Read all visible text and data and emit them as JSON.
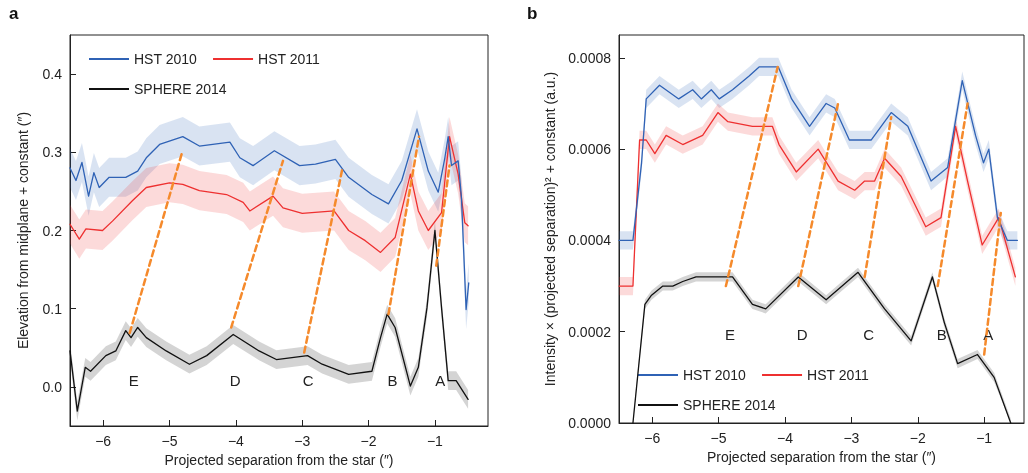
{
  "chart_data": [
    {
      "type": "line",
      "title": "a",
      "xlabel": "Projected separation from the star (″)",
      "ylabel": "Elevation from midplane + constant (″)",
      "xlim": [
        -6.5,
        -0.2
      ],
      "ylim": [
        -0.05,
        0.45
      ],
      "xticks": [
        {
          "value": -6,
          "label": "−6"
        },
        {
          "value": -5,
          "label": "−5"
        },
        {
          "value": -4,
          "label": "−4"
        },
        {
          "value": -3,
          "label": "−3"
        },
        {
          "value": -2,
          "label": "−2"
        },
        {
          "value": -1,
          "label": "−1"
        }
      ],
      "yticks": [
        {
          "value": 0,
          "label": "0.0"
        },
        0.1,
        0.2,
        0.3,
        0.4
      ],
      "grid": false,
      "legend": "top left",
      "marker": "none",
      "line_style": "solid",
      "series": [
        {
          "name": "HST 2010",
          "color": "#2f62b5",
          "x": [
            -6.5,
            -6.41,
            -6.32,
            -6.22,
            -6.14,
            -6.06,
            -5.91,
            -5.66,
            -5.48,
            -5.35,
            -5.15,
            -4.8,
            -4.55,
            -4.09,
            -3.94,
            -3.74,
            -3.42,
            -3.04,
            -2.8,
            -2.5,
            -2.3,
            -1.95,
            -1.7,
            -1.5,
            -1.27,
            -1.1,
            -0.95,
            -0.85,
            -0.8,
            -0.75,
            -0.65,
            -0.6,
            -0.53,
            -0.49
          ],
          "values": [
            0.28,
            0.264,
            0.287,
            0.244,
            0.274,
            0.255,
            0.268,
            0.268,
            0.276,
            0.293,
            0.31,
            0.32,
            0.308,
            0.313,
            0.293,
            0.283,
            0.302,
            0.283,
            0.285,
            0.291,
            0.268,
            0.246,
            0.234,
            0.264,
            0.33,
            0.276,
            0.249,
            0.293,
            0.32,
            0.283,
            0.289,
            0.242,
            0.099,
            0.133
          ],
          "lower": [
            0.255,
            0.239,
            0.262,
            0.219,
            0.249,
            0.23,
            0.243,
            0.243,
            0.251,
            0.268,
            0.285,
            0.295,
            0.283,
            0.288,
            0.268,
            0.258,
            0.277,
            0.258,
            0.26,
            0.266,
            0.243,
            0.221,
            0.209,
            0.239,
            0.305,
            0.251,
            0.224,
            0.268,
            0.295,
            0.258,
            0.264,
            0.217,
            0.074,
            0.108
          ],
          "upper": [
            0.305,
            0.289,
            0.312,
            0.269,
            0.299,
            0.28,
            0.293,
            0.293,
            0.301,
            0.318,
            0.335,
            0.345,
            0.333,
            0.338,
            0.318,
            0.308,
            0.327,
            0.308,
            0.31,
            0.316,
            0.293,
            0.271,
            0.259,
            0.289,
            0.355,
            0.301,
            0.274,
            0.318,
            0.345,
            0.308,
            0.314,
            0.267,
            0.124,
            0.158
          ]
        },
        {
          "name": "HST 2011",
          "color": "#ee3030",
          "x": [
            -6.5,
            -6.36,
            -6.26,
            -6.01,
            -5.86,
            -5.56,
            -5.35,
            -5.0,
            -4.8,
            -4.55,
            -4.14,
            -3.89,
            -3.79,
            -3.44,
            -3.29,
            -3.0,
            -2.52,
            -2.3,
            -2.05,
            -1.82,
            -1.6,
            -1.37,
            -1.25,
            -1.1,
            -0.9,
            -0.78,
            -0.65,
            -0.55,
            -0.5
          ],
          "values": [
            0.208,
            0.189,
            0.202,
            0.2,
            0.212,
            0.238,
            0.255,
            0.261,
            0.259,
            0.251,
            0.246,
            0.236,
            0.225,
            0.244,
            0.229,
            0.222,
            0.225,
            0.2,
            0.187,
            0.172,
            0.191,
            0.272,
            0.225,
            0.2,
            0.223,
            0.32,
            0.272,
            0.21,
            0.206
          ],
          "lower": [
            0.183,
            0.164,
            0.177,
            0.175,
            0.187,
            0.213,
            0.23,
            0.236,
            0.234,
            0.226,
            0.221,
            0.211,
            0.2,
            0.219,
            0.204,
            0.197,
            0.2,
            0.175,
            0.162,
            0.147,
            0.166,
            0.247,
            0.2,
            0.175,
            0.198,
            0.295,
            0.247,
            0.185,
            0.181
          ],
          "upper": [
            0.233,
            0.214,
            0.227,
            0.225,
            0.237,
            0.263,
            0.28,
            0.286,
            0.284,
            0.276,
            0.271,
            0.261,
            0.25,
            0.269,
            0.254,
            0.247,
            0.25,
            0.225,
            0.212,
            0.197,
            0.216,
            0.297,
            0.25,
            0.225,
            0.248,
            0.345,
            0.297,
            0.235,
            0.231
          ]
        },
        {
          "name": "SPHERE 2014",
          "color": "#111111",
          "x": [
            -6.5,
            -6.39,
            -6.27,
            -6.19,
            -5.96,
            -5.81,
            -5.66,
            -5.58,
            -5.48,
            -5.35,
            -5.05,
            -4.7,
            -4.44,
            -4.04,
            -3.65,
            -3.39,
            -2.92,
            -2.7,
            -2.3,
            -1.95,
            -1.82,
            -1.72,
            -1.6,
            -1.37,
            -1.25,
            -1.12,
            -1.0,
            -0.9,
            -0.8,
            -0.68,
            -0.5
          ],
          "values": [
            0.046,
            -0.031,
            0.025,
            0.02,
            0.04,
            0.046,
            0.072,
            0.063,
            0.076,
            0.063,
            0.046,
            0.029,
            0.04,
            0.067,
            0.046,
            0.035,
            0.04,
            0.029,
            0.016,
            0.02,
            0.063,
            0.093,
            0.076,
            0.001,
            0.025,
            0.101,
            0.2,
            0.101,
            0.008,
            0.008,
            -0.016
          ],
          "lower": [
            0.034,
            -0.043,
            0.013,
            0.008,
            0.028,
            0.034,
            0.06,
            0.051,
            0.064,
            0.051,
            0.034,
            0.017,
            0.028,
            0.055,
            0.034,
            0.023,
            0.028,
            0.017,
            0.004,
            0.008,
            0.051,
            0.081,
            0.064,
            -0.011,
            0.013,
            0.089,
            0.188,
            0.089,
            -0.004,
            -0.004,
            -0.028
          ],
          "upper": [
            0.058,
            -0.019,
            0.037,
            0.032,
            0.052,
            0.058,
            0.084,
            0.075,
            0.088,
            0.075,
            0.058,
            0.041,
            0.052,
            0.079,
            0.058,
            0.047,
            0.052,
            0.041,
            0.028,
            0.032,
            0.075,
            0.105,
            0.088,
            0.013,
            0.037,
            0.113,
            0.212,
            0.113,
            0.02,
            0.02,
            -0.004
          ]
        },
        {
          "type": "line",
          "color": "#f58a2c",
          "line_style": "dashed",
          "x": [
            -5.6,
            -4.81
          ],
          "values": [
            0.069,
            0.3
          ]
        },
        {
          "type": "line",
          "color": "#f58a2c",
          "line_style": "dashed",
          "x": [
            -4.07,
            -3.29
          ],
          "values": [
            0.076,
            0.289
          ]
        },
        {
          "type": "line",
          "color": "#f58a2c",
          "line_style": "dashed",
          "x": [
            -2.97,
            -2.39
          ],
          "values": [
            0.044,
            0.281
          ]
        },
        {
          "type": "line",
          "color": "#f58a2c",
          "line_style": "dashed",
          "x": [
            -1.7,
            -1.24
          ],
          "values": [
            0.093,
            0.32
          ]
        },
        {
          "type": "line",
          "color": "#f58a2c",
          "line_style": "dashed",
          "x": [
            -0.98,
            -0.78
          ],
          "values": [
            0.155,
            0.283
          ]
        }
      ],
      "annotations": [
        "E",
        "D",
        "C",
        "B",
        "A"
      ]
    },
    {
      "type": "line",
      "title": "b",
      "xlabel": "Projected separation from the star (″)",
      "ylabel": "Intensity × (projected separation)² + constant (a.u.)",
      "xlim": [
        -6.5,
        -0.4
      ],
      "ylim": [
        0,
        0.00085
      ],
      "xticks": [
        {
          "value": -6,
          "label": "−6"
        },
        {
          "value": -5,
          "label": "−5"
        },
        {
          "value": -4,
          "label": "−4"
        },
        {
          "value": -3,
          "label": "−3"
        },
        {
          "value": -2,
          "label": "−2"
        },
        {
          "value": -1,
          "label": "−1"
        }
      ],
      "yticks": [
        {
          "value": 0,
          "label": "0.0000"
        },
        {
          "value": 0.0002,
          "label": "0.0002"
        },
        {
          "value": 0.0004,
          "label": "0.0004"
        },
        {
          "value": 0.0006,
          "label": "0.0006"
        },
        {
          "value": 0.0008,
          "label": "0.0008"
        }
      ],
      "grid": false,
      "legend": "bottom left",
      "marker": "none",
      "line_style": "solid",
      "series": [
        {
          "name": "HST 2010",
          "color": "#2f62b5",
          "x": [
            -6.5,
            -6.29,
            -6.16,
            -6.09,
            -5.89,
            -5.6,
            -5.39,
            -5.26,
            -5.11,
            -4.99,
            -4.79,
            -4.54,
            -4.39,
            -4.25,
            -4.1,
            -3.9,
            -3.63,
            -3.38,
            -3.25,
            -3.03,
            -2.7,
            -2.4,
            -2.15,
            -1.8,
            -1.55,
            -1.33,
            -1.13,
            -1.01,
            -0.93,
            -0.8,
            -0.65,
            -0.5
          ],
          "values": [
            0.0004,
            0.0004,
            0.00057,
            0.00071,
            0.00074,
            0.00071,
            0.00073,
            0.00071,
            0.00073,
            0.00071,
            0.00073,
            0.00076,
            0.00078,
            0.00078,
            0.00078,
            0.00071,
            0.00065,
            0.0007,
            0.00069,
            0.00062,
            0.00062,
            0.00068,
            0.00065,
            0.00053,
            0.00056,
            0.00075,
            0.00063,
            0.00057,
            0.0006,
            0.00045,
            0.0004,
            0.0004
          ],
          "lower": [
            0.00038,
            0.00038,
            0.00055,
            0.00069,
            0.00072,
            0.00069,
            0.00071,
            0.00069,
            0.00071,
            0.00069,
            0.00071,
            0.00074,
            0.00076,
            0.00076,
            0.00076,
            0.00069,
            0.00063,
            0.00068,
            0.00067,
            0.0006,
            0.0006,
            0.00066,
            0.00063,
            0.00051,
            0.00054,
            0.00073,
            0.00061,
            0.00055,
            0.00058,
            0.00043,
            0.00038,
            0.00038
          ],
          "upper": [
            0.00042,
            0.00042,
            0.00059,
            0.00073,
            0.00076,
            0.00073,
            0.00075,
            0.00073,
            0.00075,
            0.00073,
            0.00075,
            0.00078,
            0.0008,
            0.0008,
            0.0008,
            0.00073,
            0.00067,
            0.00072,
            0.00071,
            0.00064,
            0.00064,
            0.0007,
            0.00067,
            0.00055,
            0.00058,
            0.00077,
            0.00065,
            0.00059,
            0.00062,
            0.00047,
            0.00042,
            0.00042
          ]
        },
        {
          "name": "HST 2011",
          "color": "#ee3030",
          "x": [
            -6.5,
            -6.29,
            -6.19,
            -6.09,
            -5.96,
            -5.79,
            -5.54,
            -5.24,
            -5.01,
            -4.86,
            -4.49,
            -4.19,
            -4.09,
            -3.83,
            -3.5,
            -3.2,
            -2.95,
            -2.8,
            -2.65,
            -2.5,
            -2.25,
            -1.88,
            -1.65,
            -1.43,
            -1.25,
            -1.03,
            -0.78,
            -0.53
          ],
          "values": [
            0.0003,
            0.0003,
            0.00062,
            0.00062,
            0.00059,
            0.00063,
            0.00061,
            0.00063,
            0.00068,
            0.00066,
            0.00065,
            0.00065,
            0.00061,
            0.00055,
            0.0006,
            0.00053,
            0.00051,
            0.00053,
            0.00053,
            0.00058,
            0.00054,
            0.00043,
            0.00045,
            0.00065,
            0.00053,
            0.00039,
            0.00045,
            0.00032
          ],
          "lower": [
            0.00028,
            0.00028,
            0.0006,
            0.0006,
            0.00057,
            0.00061,
            0.00059,
            0.00061,
            0.00066,
            0.00064,
            0.00063,
            0.00063,
            0.00059,
            0.00053,
            0.00058,
            0.00051,
            0.00049,
            0.00051,
            0.00051,
            0.00056,
            0.00052,
            0.00041,
            0.00043,
            0.00063,
            0.00051,
            0.00037,
            0.00043,
            0.0003
          ],
          "upper": [
            0.00032,
            0.00032,
            0.00064,
            0.00064,
            0.00061,
            0.00065,
            0.00063,
            0.00065,
            0.0007,
            0.00068,
            0.00067,
            0.00067,
            0.00063,
            0.00057,
            0.00062,
            0.00055,
            0.00053,
            0.00055,
            0.00055,
            0.0006,
            0.00056,
            0.00045,
            0.00047,
            0.00067,
            0.00055,
            0.00041,
            0.00047,
            0.00034
          ]
        },
        {
          "name": "SPHERE 2014",
          "color": "#111111",
          "x": [
            -6.29,
            -6.11,
            -6.01,
            -5.84,
            -5.69,
            -5.54,
            -5.34,
            -4.99,
            -4.79,
            -4.49,
            -4.29,
            -3.8,
            -3.38,
            -2.9,
            -2.5,
            -2.1,
            -1.78,
            -1.6,
            -1.4,
            -1.1,
            -0.85,
            -0.6
          ],
          "values": [
            0,
            0.00026,
            0.00028,
            0.0003,
            0.0003,
            0.00031,
            0.00032,
            0.00032,
            0.00032,
            0.00026,
            0.00025,
            0.00032,
            0.00027,
            0.00033,
            0.00025,
            0.00018,
            0.00032,
            0.00022,
            0.00013,
            0.00015,
            0.0001,
            0
          ],
          "lower": [
            0,
            0.00025,
            0.00027,
            0.00029,
            0.00029,
            0.0003,
            0.00031,
            0.00031,
            0.00031,
            0.00025,
            0.00024,
            0.00031,
            0.00026,
            0.00032,
            0.00024,
            0.00017,
            0.00031,
            0.00021,
            0.00012,
            0.00014,
            9e-05,
            0
          ],
          "upper": [
            1e-05,
            0.00027,
            0.00029,
            0.00031,
            0.00031,
            0.00032,
            0.00033,
            0.00033,
            0.00033,
            0.00027,
            0.00026,
            0.00033,
            0.00028,
            0.00034,
            0.00026,
            0.00019,
            0.00033,
            0.00023,
            0.00014,
            0.00016,
            0.00011,
            1e-05
          ]
        },
        {
          "type": "line",
          "color": "#f58a2c",
          "line_style": "dashed",
          "x": [
            -4.89,
            -4.11
          ],
          "values": [
            0.0003,
            0.00078
          ]
        },
        {
          "type": "line",
          "color": "#f58a2c",
          "line_style": "dashed",
          "x": [
            -3.8,
            -3.2
          ],
          "values": [
            0.0003,
            0.0007
          ]
        },
        {
          "type": "line",
          "color": "#f58a2c",
          "line_style": "dashed",
          "x": [
            -2.8,
            -2.4
          ],
          "values": [
            0.00032,
            0.00067
          ]
        },
        {
          "type": "line",
          "color": "#f58a2c",
          "line_style": "dashed",
          "x": [
            -1.7,
            -1.25
          ],
          "values": [
            0.0003,
            0.0007
          ]
        },
        {
          "type": "line",
          "color": "#f58a2c",
          "line_style": "dashed",
          "x": [
            -1.0,
            -0.75
          ],
          "values": [
            0.00015,
            0.00046
          ]
        }
      ],
      "annotations": [
        "E",
        "D",
        "C",
        "B",
        "A"
      ]
    }
  ]
}
